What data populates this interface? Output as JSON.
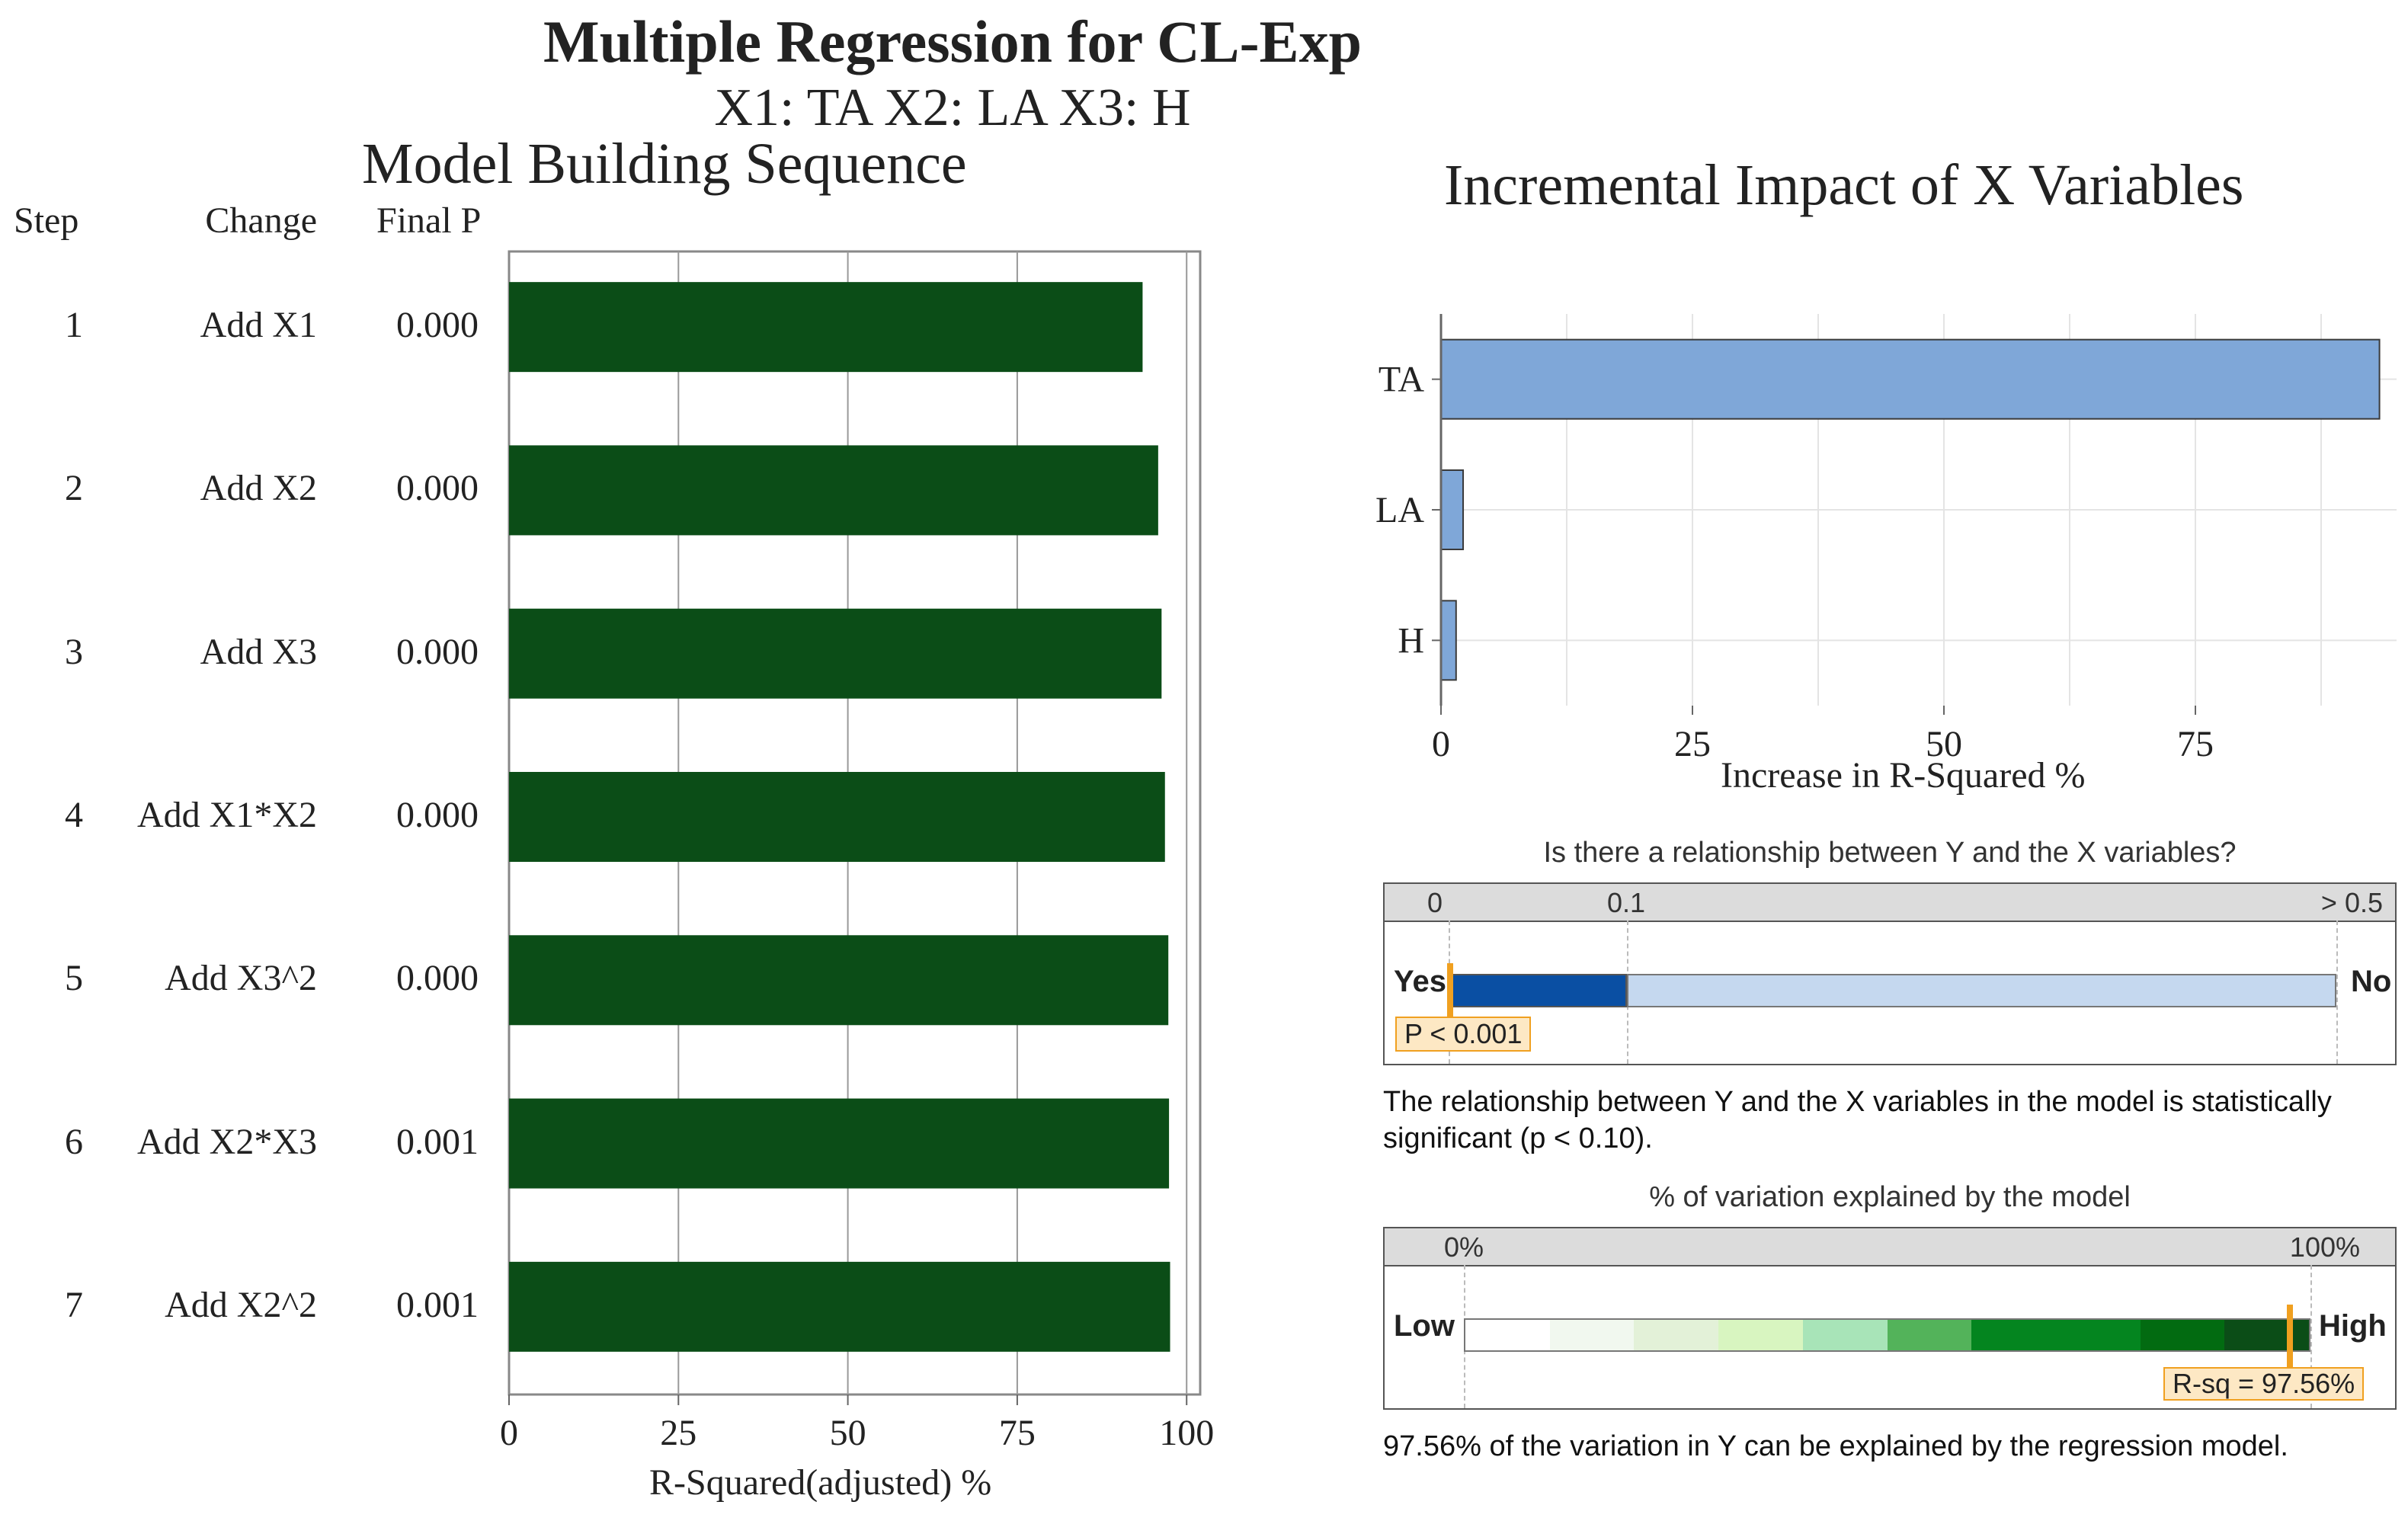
{
  "title": "Multiple Regression for CL-Exp",
  "subtitle": "X1: TA   X2: LA   X3: H",
  "chart_data": [
    {
      "type": "bar",
      "orientation": "horizontal",
      "title": "Model Building Sequence",
      "columns": {
        "step": "Step",
        "change": "Change",
        "final_p": "Final P"
      },
      "rows": [
        {
          "step": "1",
          "change": "Add X1",
          "final_p": "0.000",
          "value": 93.5
        },
        {
          "step": "2",
          "change": "Add X2",
          "final_p": "0.000",
          "value": 95.8
        },
        {
          "step": "3",
          "change": "Add X3",
          "final_p": "0.000",
          "value": 96.3
        },
        {
          "step": "4",
          "change": "Add X1*X2",
          "final_p": "0.000",
          "value": 96.8
        },
        {
          "step": "5",
          "change": "Add X3^2",
          "final_p": "0.000",
          "value": 97.3
        },
        {
          "step": "6",
          "change": "Add X2*X3",
          "final_p": "0.001",
          "value": 97.4
        },
        {
          "step": "7",
          "change": "Add X2^2",
          "final_p": "0.001",
          "value": 97.56
        }
      ],
      "xlabel": "R-Squared(adjusted) %",
      "xlim": [
        0,
        102
      ],
      "ticks": [
        "0",
        "25",
        "50",
        "75",
        "100"
      ],
      "bar_color": "#0b4d17"
    },
    {
      "type": "bar",
      "orientation": "horizontal",
      "title": "Incremental Impact of X Variables",
      "categories": [
        "TA",
        "LA",
        "H"
      ],
      "values": [
        93.3,
        2.2,
        1.5
      ],
      "xlabel": "Increase in R-Squared %",
      "xlim": [
        0,
        95
      ],
      "ticks": [
        "0",
        "25",
        "50",
        "75"
      ],
      "bar_color": "#7fa7d8"
    }
  ],
  "relationship": {
    "question": "Is there a relationship between Y and the X variables?",
    "scale_labels": [
      "0",
      "0.1",
      "> 0.5"
    ],
    "yes": "Yes",
    "no": "No",
    "p_value": 0.001,
    "p_label": "P < 0.001",
    "note": "The relationship between Y and the X variables in the model is statistically significant (p < 0.10)."
  },
  "variation": {
    "title": "% of variation explained by the model",
    "scale_labels": [
      "0%",
      "100%"
    ],
    "low": "Low",
    "high": "High",
    "r_sq": 97.56,
    "r_sq_label": "R-sq = 97.56%",
    "note": "97.56% of the variation in Y can be explained by the regression model."
  },
  "colors": {
    "dark_green": "#0b4d17",
    "light_blue_bar": "#7fa7d8",
    "p_dark": "#0a4fa3",
    "p_light": "#c5d8ef",
    "marker": "#f0a020",
    "label_bg": "#fde8c4",
    "header_gray": "#dcdcdc"
  }
}
